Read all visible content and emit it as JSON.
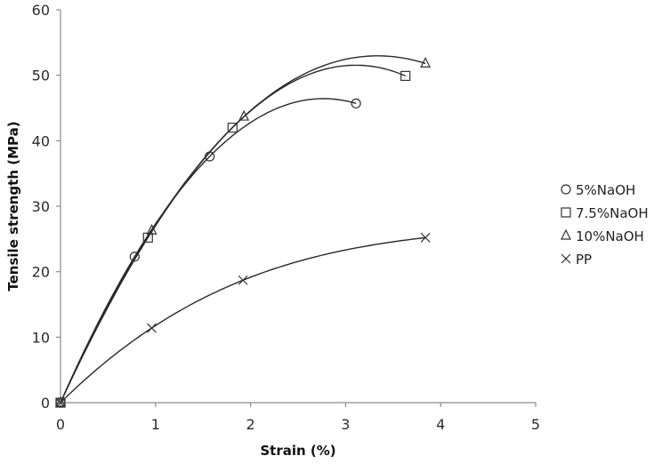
{
  "chart_data": {
    "type": "scatter",
    "title": "",
    "xlabel": "Strain (%)",
    "ylabel": "Tensile strength (MPa)",
    "xlim": [
      0,
      5
    ],
    "ylim": [
      0,
      60
    ],
    "xticks": [
      0,
      1,
      2,
      3,
      4,
      5
    ],
    "yticks": [
      0,
      10,
      20,
      30,
      40,
      50,
      60
    ],
    "grid": false,
    "legend_position": "right",
    "trendline": "polynomial (smooth curve through points)",
    "series": [
      {
        "name": "5%NaOH",
        "marker": "circle",
        "x": [
          0,
          0.78,
          1.57,
          3.11
        ],
        "y": [
          0,
          22.3,
          37.6,
          45.7
        ]
      },
      {
        "name": "7.5%NaOH",
        "marker": "square",
        "x": [
          0,
          0.92,
          1.81,
          3.63
        ],
        "y": [
          0,
          25.2,
          42.0,
          49.9
        ]
      },
      {
        "name": "10%NaOH",
        "marker": "triangle",
        "x": [
          0,
          0.96,
          1.93,
          3.84
        ],
        "y": [
          0,
          26.3,
          43.7,
          51.8
        ]
      },
      {
        "name": "PP",
        "marker": "x",
        "x": [
          0,
          0.96,
          1.92,
          3.84
        ],
        "y": [
          0,
          11.4,
          18.7,
          25.2
        ]
      }
    ]
  },
  "legend": {
    "items": [
      {
        "label": "5%NaOH",
        "symbol": "○"
      },
      {
        "label": "7.5%NaOH",
        "symbol": "□"
      },
      {
        "label": "10%NaOH",
        "symbol": "△"
      },
      {
        "label": "PP",
        "symbol": "×"
      }
    ]
  },
  "axes": {
    "x_title": "Strain (%)",
    "y_title": "Tensile strength (MPa)",
    "x_tick_labels": [
      "0",
      "1",
      "2",
      "3",
      "4",
      "5"
    ],
    "y_tick_labels": [
      "0",
      "10",
      "20",
      "30",
      "40",
      "50",
      "60"
    ]
  },
  "colors": {
    "axis": "#8c8c8c",
    "line": "#2a2a2a",
    "marker": "#333333"
  }
}
